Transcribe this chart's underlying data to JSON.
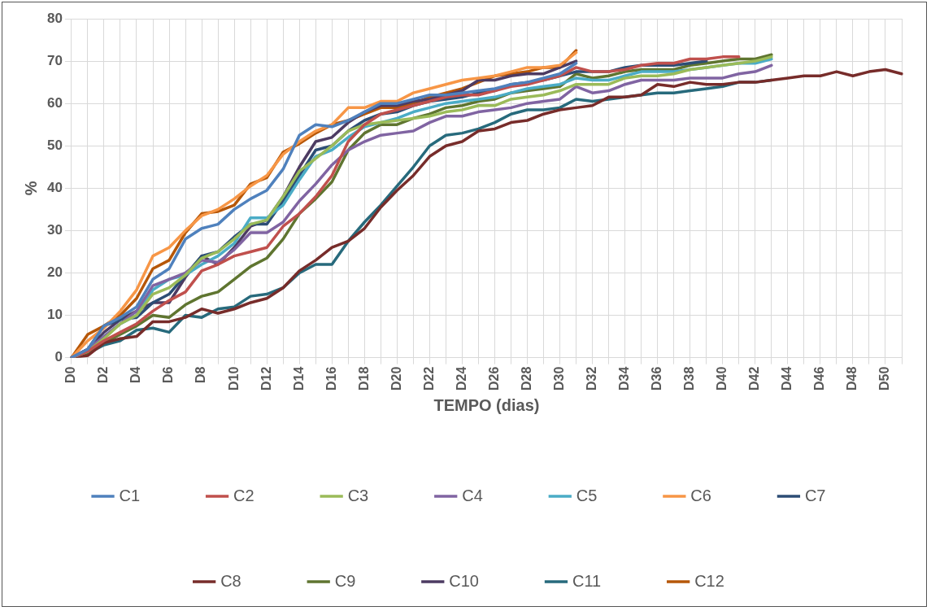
{
  "chart_data": {
    "type": "line",
    "xlabel": "TEMPO (dias)",
    "ylabel": "%",
    "categories": [
      "D0",
      null,
      "D2",
      null,
      "D4",
      null,
      "D6",
      null,
      "D8",
      null,
      "D10",
      null,
      "D12",
      null,
      "D14",
      null,
      "D16",
      null,
      "D18",
      null,
      "D20",
      null,
      "D22",
      null,
      "D24",
      null,
      "D26",
      null,
      "D28",
      null,
      "D30",
      null,
      "D32",
      null,
      "D34",
      null,
      "D36",
      null,
      "D38",
      null,
      "D40",
      null,
      "D42",
      null,
      "D44",
      null,
      "D46",
      null,
      "D48",
      null,
      "D50",
      null
    ],
    "ylim": [
      0,
      80
    ],
    "yticks": [
      0,
      10,
      20,
      30,
      40,
      50,
      60,
      70,
      80
    ],
    "grid": true,
    "legend": "bottom",
    "marker": "none",
    "line_style": "solid",
    "series": [
      {
        "name": "C1",
        "color": "#4f81bd",
        "values": [
          0,
          2,
          7.5,
          9.5,
          12,
          18.5,
          21,
          28,
          30.5,
          31.5,
          35,
          37.5,
          39.5,
          44.5,
          52.5,
          55,
          54.5,
          56,
          58,
          60,
          60,
          61,
          62,
          62,
          62.5,
          63,
          63.5,
          64.5,
          65,
          66,
          67,
          69.5,
          null,
          null,
          null,
          null,
          null,
          null,
          null,
          null,
          null,
          null,
          null,
          null,
          null,
          null,
          null,
          null,
          null,
          null,
          null,
          null
        ]
      },
      {
        "name": "C2",
        "color": "#c0504d",
        "values": [
          0,
          1.5,
          4,
          6,
          8,
          11,
          13.5,
          15.5,
          20.5,
          22,
          24,
          25,
          26,
          31,
          34,
          38,
          43,
          51,
          55,
          57.5,
          58.5,
          59.5,
          60.5,
          61.5,
          62,
          62,
          63,
          64,
          64.5,
          65.5,
          66.5,
          68.5,
          67.5,
          67.5,
          68,
          69,
          69.5,
          69.5,
          70.5,
          70.5,
          71,
          71,
          null,
          null,
          null,
          null,
          null,
          null,
          null,
          null,
          null,
          null
        ]
      },
      {
        "name": "C3",
        "color": "#9bbb59",
        "values": [
          0,
          1.5,
          4.5,
          8,
          10,
          15,
          16.5,
          19.5,
          23.5,
          25,
          28,
          31.5,
          32.5,
          38,
          44,
          47,
          50,
          53.5,
          55,
          55.5,
          56,
          56.5,
          57,
          58,
          58.5,
          59.5,
          59.5,
          61,
          61.5,
          62,
          63,
          64.5,
          64.5,
          64.5,
          66,
          66.5,
          66.5,
          67,
          68,
          68.5,
          69,
          69.5,
          70,
          71,
          null,
          null,
          null,
          null,
          null,
          null,
          null,
          null
        ]
      },
      {
        "name": "C4",
        "color": "#8064a2",
        "values": [
          0,
          2,
          5,
          8,
          11,
          17,
          18.5,
          20,
          23,
          22.5,
          25.5,
          29.5,
          29.5,
          32,
          37,
          41,
          45.5,
          49,
          51,
          52.5,
          53,
          53.5,
          55.5,
          57,
          57,
          58,
          58.5,
          59,
          60,
          60.5,
          61,
          64,
          62.5,
          63,
          64.5,
          65.5,
          65.5,
          65.5,
          66,
          66,
          66,
          67,
          67.5,
          69,
          null,
          null,
          null,
          null,
          null,
          null,
          null,
          null
        ]
      },
      {
        "name": "C5",
        "color": "#4bacc6",
        "values": [
          0,
          1.5,
          5,
          8,
          10,
          16,
          18.5,
          19.5,
          22,
          24,
          27,
          33,
          33,
          36,
          42,
          47.5,
          49,
          52,
          54.5,
          55.5,
          56.5,
          58,
          59,
          60,
          60.5,
          61,
          61.5,
          62.5,
          63.5,
          64,
          64.5,
          66,
          65.5,
          65.5,
          66.5,
          67.5,
          67.5,
          67.5,
          68,
          68.5,
          69,
          69.5,
          69.5,
          70.5,
          null,
          null,
          null,
          null,
          null,
          null,
          null,
          null
        ]
      },
      {
        "name": "C6",
        "color": "#f79646",
        "values": [
          0,
          4,
          7,
          11,
          16,
          24,
          26,
          30,
          33.5,
          35,
          37.5,
          40.5,
          43,
          48,
          51,
          53.5,
          55,
          59,
          59,
          60.5,
          60.5,
          62.5,
          63.5,
          64.5,
          65.5,
          66,
          66.5,
          67.5,
          68.5,
          68.5,
          69,
          72,
          null,
          null,
          null,
          null,
          null,
          null,
          null,
          null,
          null,
          null,
          null,
          null,
          null,
          null,
          null,
          null,
          null,
          null,
          null,
          null
        ]
      },
      {
        "name": "C7",
        "color": "#2c4d75",
        "values": [
          0,
          2,
          7.5,
          9,
          9.5,
          13,
          15,
          19.5,
          24,
          25,
          28.5,
          31.5,
          31.5,
          37,
          43,
          49,
          50,
          53.5,
          56,
          57.5,
          58,
          59.5,
          60.5,
          61,
          61.5,
          62.5,
          63,
          64.5,
          65,
          65.5,
          66.5,
          67.5,
          67.5,
          67.5,
          68.5,
          69,
          69,
          69,
          69.5,
          70,
          null,
          null,
          null,
          null,
          null,
          null,
          null,
          null,
          null,
          null,
          null,
          null
        ]
      },
      {
        "name": "C8",
        "color": "#772c2a",
        "values": [
          0,
          0.5,
          3.5,
          4.5,
          5,
          8.5,
          8.5,
          9.5,
          11.5,
          10.5,
          11.5,
          13,
          14,
          16.5,
          20.5,
          23,
          26,
          27.5,
          30.5,
          35.5,
          39.5,
          43,
          47.5,
          50,
          51,
          53.5,
          54,
          55.5,
          56,
          57.5,
          58.5,
          59,
          59.5,
          61.5,
          61.5,
          62,
          64.5,
          64,
          65,
          64.5,
          64.5,
          65,
          65,
          65.5,
          66,
          66.5,
          66.5,
          67.5,
          66.5,
          67.5,
          68,
          67
        ]
      },
      {
        "name": "C9",
        "color": "#5f7530",
        "values": [
          0,
          1,
          3.5,
          5.5,
          7.5,
          10,
          9.5,
          12.5,
          14.5,
          15.5,
          18.5,
          21.5,
          23.5,
          28,
          34,
          37.5,
          41.5,
          49,
          53,
          55,
          55,
          56.5,
          57.5,
          59,
          59.5,
          60.5,
          61,
          62.5,
          63,
          63.5,
          64,
          67,
          66,
          66.5,
          67.5,
          68,
          68,
          68,
          69,
          69.5,
          70,
          70.5,
          70.5,
          71.5,
          null,
          null,
          null,
          null,
          null,
          null,
          null,
          null
        ]
      },
      {
        "name": "C10",
        "color": "#4d3b62",
        "values": [
          0,
          2,
          6,
          9,
          11,
          13,
          13,
          19,
          24,
          22,
          26,
          31,
          32.5,
          38,
          45,
          51,
          52,
          55.5,
          58,
          59.5,
          59.5,
          60.5,
          61,
          62,
          63,
          65.5,
          65.5,
          66.5,
          67,
          67,
          68.5,
          70,
          null,
          null,
          null,
          null,
          null,
          null,
          null,
          null,
          null,
          null,
          null,
          null,
          null,
          null,
          null,
          null,
          null,
          null,
          null,
          null
        ]
      },
      {
        "name": "C11",
        "color": "#276a7c",
        "values": [
          0,
          1,
          3,
          4,
          6.5,
          7,
          6,
          10,
          9.5,
          11.5,
          12,
          14.5,
          15,
          16.5,
          20,
          22,
          22,
          27.5,
          32,
          36,
          40.5,
          45,
          50,
          52.5,
          53,
          54,
          55.5,
          57.5,
          58.5,
          58.5,
          59,
          61,
          60.5,
          61,
          61.5,
          62,
          62.5,
          62.5,
          63,
          63.5,
          64,
          65,
          65,
          65.5,
          null,
          null,
          null,
          null,
          null,
          null,
          null,
          null
        ]
      },
      {
        "name": "C12",
        "color": "#b65708",
        "values": [
          0,
          5.5,
          7.5,
          10,
          14,
          21,
          23,
          29.5,
          34,
          34.5,
          36,
          41,
          42.5,
          48.5,
          50.5,
          53,
          55,
          56,
          57.5,
          59,
          59,
          60,
          61.5,
          62.5,
          63.5,
          65,
          66.5,
          67,
          67.5,
          68.5,
          68.5,
          72.5,
          null,
          null,
          null,
          null,
          null,
          null,
          null,
          null,
          null,
          null,
          null,
          null,
          null,
          null,
          null,
          null,
          null,
          null,
          null,
          null
        ]
      }
    ]
  }
}
